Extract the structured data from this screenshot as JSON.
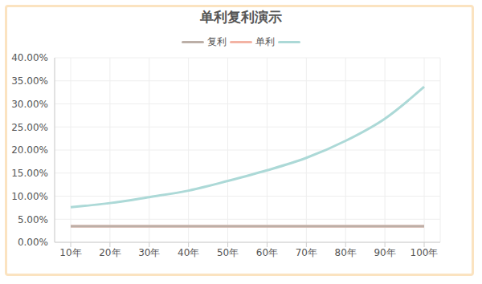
{
  "chart_data": {
    "type": "line",
    "title": "单利复利演示",
    "categories": [
      "10年",
      "20年",
      "30年",
      "40年",
      "50年",
      "60年",
      "70年",
      "80年",
      "90年",
      "100年"
    ],
    "series": [
      {
        "name": "复利",
        "color": "#bcafa7",
        "values": [
          3.5,
          3.5,
          3.5,
          3.5,
          3.5,
          3.5,
          3.5,
          3.5,
          3.5,
          3.5
        ]
      },
      {
        "name": "单利",
        "color": "#f3b3a4",
        "values": [
          3.5,
          3.5,
          3.5,
          3.5,
          3.5,
          3.5,
          3.5,
          3.5,
          3.5,
          3.5
        ]
      },
      {
        "color": "#acd9d7",
        "values": [
          7.6,
          8.5,
          9.8,
          11.2,
          13.3,
          15.6,
          18.3,
          22.0,
          26.8,
          33.7
        ]
      }
    ],
    "ylim": [
      0,
      40
    ],
    "yticks": [
      {
        "value": 0,
        "label": "0.00%"
      },
      {
        "value": 5,
        "label": "5.00%"
      },
      {
        "value": 10,
        "label": "10.00%"
      },
      {
        "value": 15,
        "label": "15.00%"
      },
      {
        "value": 20,
        "label": "20.00%"
      },
      {
        "value": 25,
        "label": "25.00%"
      },
      {
        "value": 30,
        "label": "30.00%"
      },
      {
        "value": 35,
        "label": "35.00%"
      },
      {
        "value": 40,
        "label": "40.00%"
      }
    ],
    "grid": true,
    "legend": "top"
  }
}
